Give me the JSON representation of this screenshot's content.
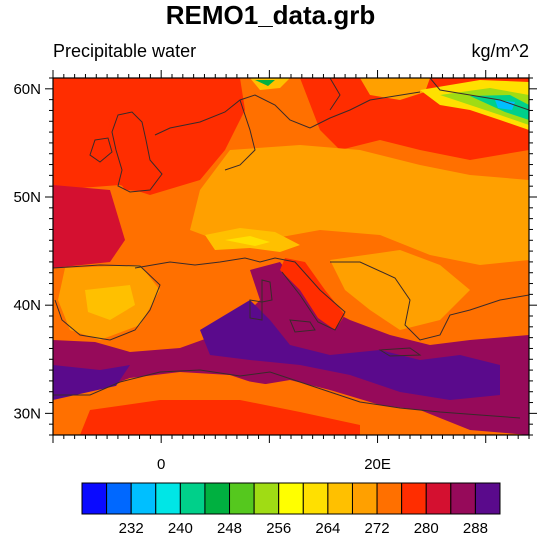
{
  "title": "REMO1_data.grb",
  "left_label": "Precipitable water",
  "right_label": "kg/m^2",
  "map": {
    "lat_ticks": [
      {
        "value": 60,
        "label": "60N"
      },
      {
        "value": 50,
        "label": "50N"
      },
      {
        "value": 40,
        "label": "40N"
      },
      {
        "value": 30,
        "label": "30N"
      }
    ],
    "lon_ticks": [
      {
        "value": 0,
        "label": "0"
      },
      {
        "value": 20,
        "label": "20E"
      }
    ],
    "lon_range": [
      -10,
      34
    ],
    "lat_range": [
      28,
      61
    ]
  },
  "colorbar": {
    "colors": [
      "#0a0aff",
      "#0068ff",
      "#00bfff",
      "#00e6e6",
      "#00d08a",
      "#00b040",
      "#55c81e",
      "#a0dc14",
      "#ffff00",
      "#ffe000",
      "#ffc000",
      "#ffa000",
      "#ff7000",
      "#ff2d00",
      "#d41030",
      "#960a5a",
      "#5a0a8c"
    ],
    "labels": [
      "232",
      "240",
      "248",
      "256",
      "264",
      "272",
      "280",
      "288"
    ],
    "label_every": 2,
    "label_start": 1
  }
}
